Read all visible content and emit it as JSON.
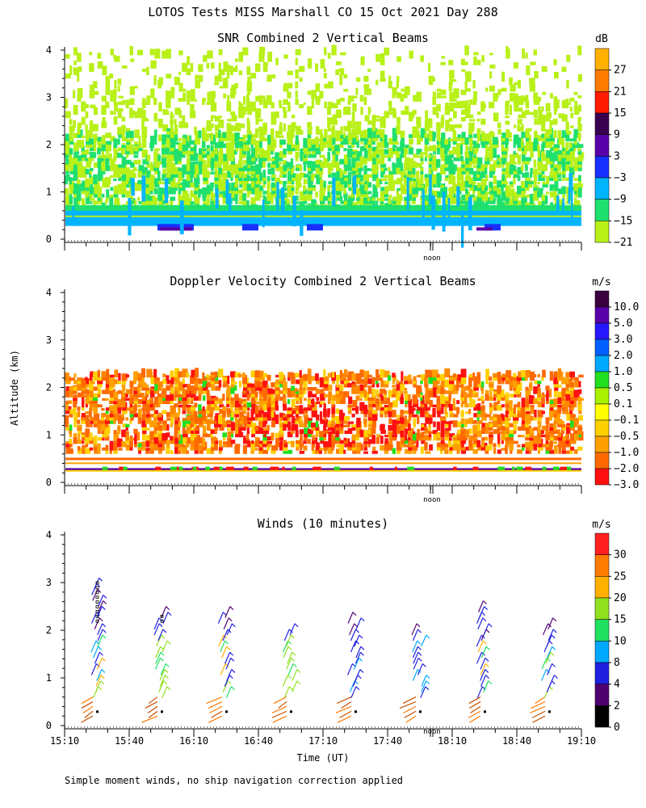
{
  "title": "LOTOS Tests MISS Marshall CO  15 Oct 2021 Day 288",
  "ylabel": "Altitude (km)",
  "xlabel": "Time (UT)",
  "noon_label": "noon",
  "footnote": "Simple moment winds, no ship navigation correction applied",
  "colors": {
    "background": "#ffffff",
    "axis": "#000000"
  },
  "chart_data": [
    {
      "type": "heatmap",
      "title": "SNR Combined 2 Vertical Beams",
      "unit": "dB",
      "ylim": [
        0,
        4
      ],
      "yticks": [
        "0",
        "1",
        "2",
        "3",
        "4"
      ],
      "xlim_minutes": [
        0,
        240
      ],
      "colorbar": {
        "labels": [
          "27",
          "21",
          "15",
          "9",
          "3",
          "−3",
          "−9",
          "−15",
          "−21"
        ],
        "colors": [
          "#ffb000",
          "#ff7a00",
          "#ff1c00",
          "#3a0050",
          "#5a00a8",
          "#1830ff",
          "#00b4ff",
          "#1ee06e",
          "#b8f018"
        ]
      },
      "layers": [
        {
          "from_km": 0.28,
          "to_km": 0.6,
          "color": "#00b4ff",
          "label": "-9"
        },
        {
          "from_km": 0.6,
          "to_km": 2.2,
          "color": "#1ee06e",
          "label": "-15"
        },
        {
          "from_km": 0.5,
          "to_km": 3.9,
          "color": "#b8f018",
          "label": "-21"
        }
      ]
    },
    {
      "type": "heatmap",
      "title": "Doppler Velocity Combined 2 Vertical Beams",
      "unit": "m/s",
      "ylim": [
        0,
        4
      ],
      "yticks": [
        "0",
        "1",
        "2",
        "3",
        "4"
      ],
      "xlim_minutes": [
        0,
        240
      ],
      "colorbar": {
        "labels": [
          "10.0",
          "5.0",
          "3.0",
          "2.0",
          "1.0",
          "0.5",
          "0.1",
          "−0.1",
          "−0.5",
          "−1.0",
          "−2.0",
          "−3.0"
        ],
        "colors": [
          "#3a0040",
          "#5a00a8",
          "#2818ff",
          "#0060ff",
          "#00a8ff",
          "#20e020",
          "#a8f000",
          "#ffff00",
          "#ffd000",
          "#ffa000",
          "#ff6a00",
          "#ff1010"
        ]
      },
      "layers": [
        {
          "from_km": 0.25,
          "to_km": 0.55,
          "color": "#ff6a00",
          "label": "-2.0"
        },
        {
          "from_km": 0.6,
          "to_km": 2.2,
          "color": "#ff8800",
          "label": "-1.5"
        },
        {
          "from_km": 0.8,
          "to_km": 1.6,
          "color": "#ff1010",
          "label": "-3.0"
        }
      ]
    },
    {
      "type": "scatter",
      "title": "Winds (10 minutes)",
      "unit": "m/s",
      "ylim": [
        0,
        4
      ],
      "yticks": [
        "0",
        "1",
        "2",
        "3",
        "4"
      ],
      "xlim_minutes": [
        0,
        240
      ],
      "xticks": [
        "15:10",
        "15:40",
        "16:10",
        "16:40",
        "17:10",
        "17:40",
        "18:10",
        "18:40",
        "19:10"
      ],
      "colorbar": {
        "labels": [
          "30",
          "25",
          "20",
          "15",
          "10",
          "8",
          "4",
          "2",
          "0"
        ],
        "colors": [
          "#ff2020",
          "#ff7a00",
          "#ffb000",
          "#90e020",
          "#20e060",
          "#00a8ff",
          "#2020e0",
          "#500070",
          "#000000"
        ]
      },
      "profile_times_minutes": [
        15,
        45,
        75,
        105,
        135,
        165,
        195,
        225
      ],
      "profile_top_km": [
        3.1,
        2.4,
        2.4,
        2.1,
        2.3,
        2.1,
        2.6,
        2.2
      ]
    }
  ]
}
